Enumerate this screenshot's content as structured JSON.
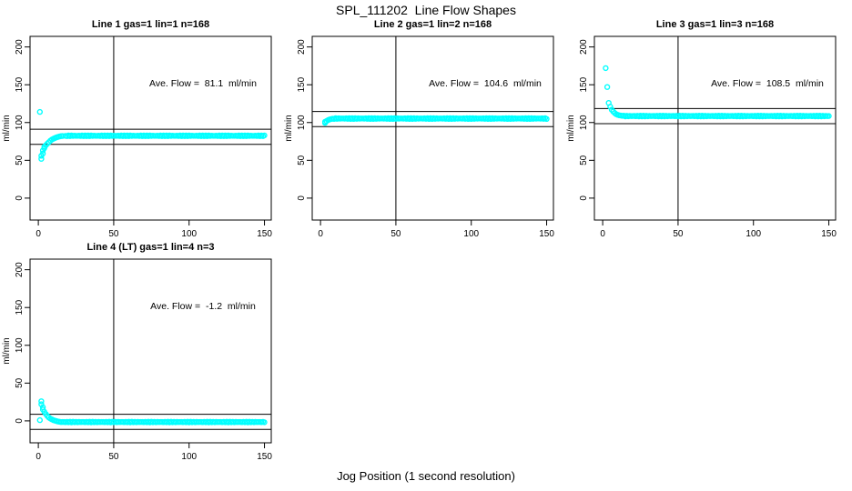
{
  "figure": {
    "title": "SPL_111202  Line Flow Shapes",
    "xlabel": "Jog Position (1 second resolution)"
  },
  "colors": {
    "points": "#00ffff",
    "axis": "#000000",
    "background": "#ffffff",
    "text": "#000000"
  },
  "axes": {
    "ylabel": "ml/min",
    "xlim": [
      -5.5,
      154.5
    ],
    "ylim": [
      -29,
      214
    ],
    "xticks": [
      0,
      50,
      100,
      150
    ],
    "yticks": [
      0,
      50,
      100,
      150,
      200
    ],
    "grid": false
  },
  "chart_data": [
    {
      "type": "scatter",
      "title": "Line 1 gas=1 lin=1 n=168",
      "annotation": "Ave. Flow =  81.1  ml/min",
      "ave_flow_ml_min": 81.1,
      "n": 168,
      "vline_x": 50,
      "hlines": [
        91.1,
        71.1
      ],
      "transient_points": [
        [
          1,
          114
        ],
        [
          2,
          52
        ],
        [
          2,
          56
        ],
        [
          3,
          59
        ],
        [
          3,
          63
        ],
        [
          4,
          66
        ],
        [
          4,
          68
        ],
        [
          5,
          70
        ],
        [
          6,
          72
        ],
        [
          7,
          74
        ],
        [
          8,
          76
        ],
        [
          9,
          77.5
        ],
        [
          10,
          78.5
        ],
        [
          11,
          79.5
        ],
        [
          12,
          80.3
        ],
        [
          13,
          81
        ],
        [
          14,
          81.5
        ],
        [
          15,
          82
        ],
        [
          16,
          82.2
        ],
        [
          18,
          82.4
        ]
      ],
      "plateau": {
        "x_start": 19,
        "x_end": 150,
        "step": 1,
        "value": 82.5,
        "jitter": 0.5
      }
    },
    {
      "type": "scatter",
      "title": "Line 2 gas=1 lin=2 n=168",
      "annotation": "Ave. Flow =  104.6  ml/min",
      "ave_flow_ml_min": 104.6,
      "n": 168,
      "vline_x": 50,
      "hlines": [
        114.6,
        94.6
      ],
      "transient_points": [
        [
          3,
          99.5
        ],
        [
          3,
          101
        ],
        [
          4,
          102
        ],
        [
          5,
          103.2
        ],
        [
          6,
          104
        ],
        [
          7,
          104.6
        ],
        [
          8,
          105
        ]
      ],
      "plateau": {
        "x_start": 9,
        "x_end": 150,
        "step": 1,
        "value": 105.3,
        "jitter": 0.5
      }
    },
    {
      "type": "scatter",
      "title": "Line 3 gas=1 lin=3 n=168",
      "annotation": "Ave. Flow =  108.5  ml/min",
      "ave_flow_ml_min": 108.5,
      "n": 168,
      "vline_x": 50,
      "hlines": [
        118.5,
        98.5
      ],
      "transient_points": [
        [
          2,
          172
        ],
        [
          3,
          147
        ],
        [
          4,
          126
        ],
        [
          5,
          121
        ],
        [
          6,
          117
        ],
        [
          7,
          114.5
        ],
        [
          8,
          112.5
        ],
        [
          9,
          111
        ],
        [
          10,
          110.2
        ],
        [
          11,
          109.6
        ],
        [
          12,
          109.2
        ],
        [
          13,
          108.9
        ]
      ],
      "plateau": {
        "x_start": 14,
        "x_end": 150,
        "step": 1,
        "value": 108.6,
        "jitter": 0.5
      }
    },
    {
      "type": "scatter",
      "title": "Line 4 (LT) gas=1 lin=4 n=3",
      "annotation": "Ave. Flow =  -1.2  ml/min",
      "ave_flow_ml_min": -1.2,
      "n": 3,
      "vline_x": 50,
      "hlines": [
        8.8,
        -11.2
      ],
      "transient_points": [
        [
          1,
          1
        ],
        [
          2,
          26
        ],
        [
          2,
          22
        ],
        [
          3,
          18
        ],
        [
          3,
          15
        ],
        [
          4,
          12
        ],
        [
          5,
          9
        ],
        [
          6,
          6.5
        ],
        [
          7,
          4.5
        ],
        [
          8,
          3
        ],
        [
          9,
          2
        ],
        [
          10,
          1
        ],
        [
          11,
          0.3
        ],
        [
          12,
          -0.3
        ],
        [
          13,
          -0.8
        ],
        [
          14,
          -1.1
        ]
      ],
      "plateau": {
        "x_start": 15,
        "x_end": 150,
        "step": 1,
        "value": -1.5,
        "jitter": 0.4
      }
    }
  ]
}
